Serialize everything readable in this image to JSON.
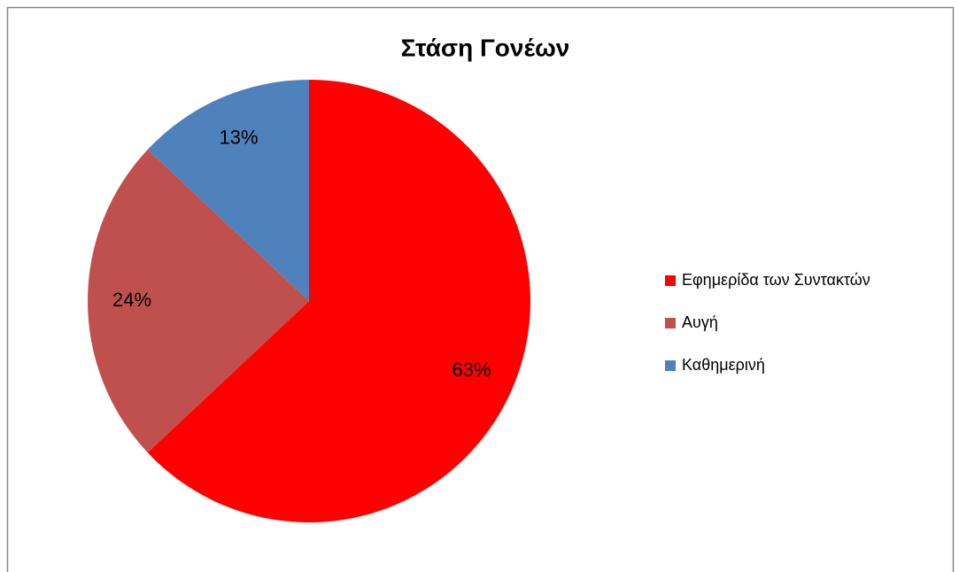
{
  "chart_data": {
    "type": "pie",
    "title": "Στάση Γονέων",
    "categories": [
      "Εφημερίδα των Συντακτών",
      "Αυγή",
      "Καθημερινή"
    ],
    "values": [
      63,
      24,
      13
    ],
    "value_labels": [
      "63%",
      "24%",
      "13%"
    ],
    "colors": [
      "#ff0000",
      "#c0504d",
      "#4f81bd"
    ],
    "legend": "right"
  }
}
